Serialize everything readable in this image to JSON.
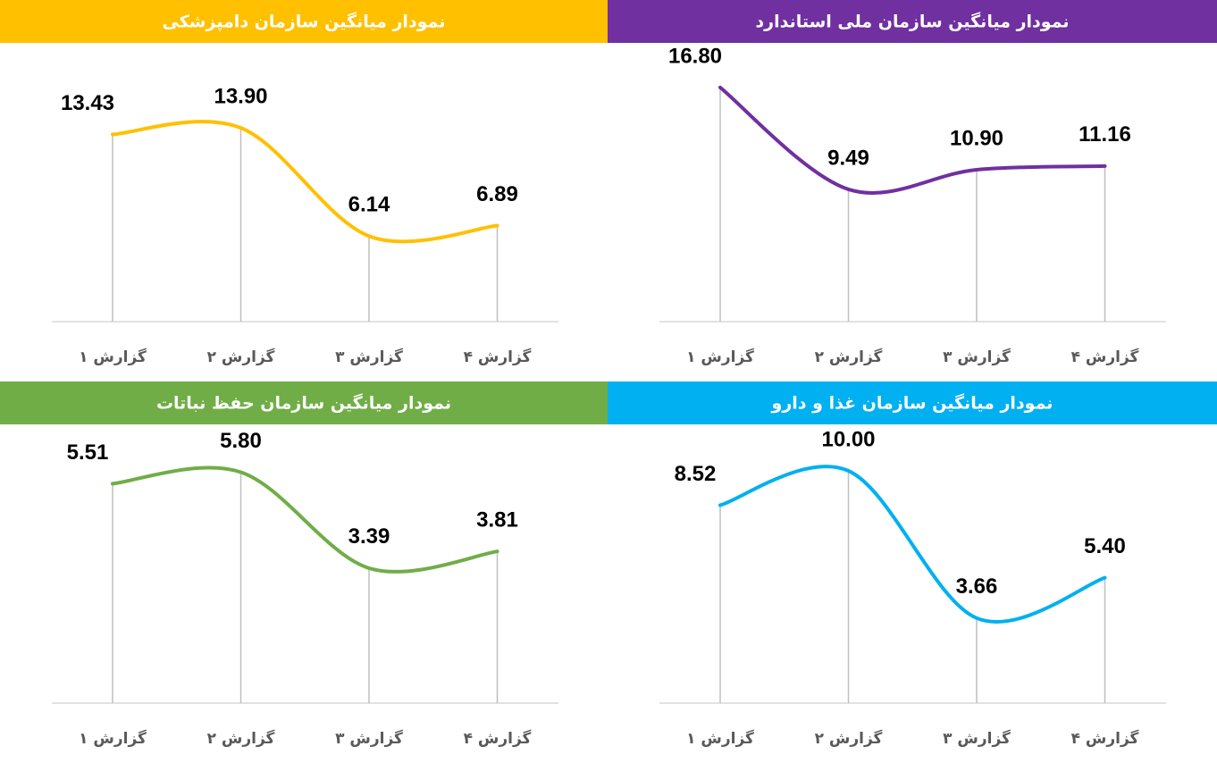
{
  "chart_data": [
    {
      "type": "line",
      "title": "نمودار میانگین سازمان دامپزشکی",
      "categories": [
        "گزارش ۱",
        "گزارش ۲",
        "گزارش ۳",
        "گزارش ۴"
      ],
      "series": [
        {
          "color": "#FFC000",
          "values": [
            13.43,
            13.9,
            6.14,
            6.89
          ],
          "value_labels": [
            "13.43",
            "13.90",
            "6.14",
            "6.89"
          ]
        }
      ],
      "ylim": [
        0,
        20
      ]
    },
    {
      "type": "line",
      "title": "نمودار میانگین سازمان ملی استاندارد",
      "categories": [
        "گزارش ۱",
        "گزارش ۲",
        "گزارش ۳",
        "گزارش ۴"
      ],
      "series": [
        {
          "color": "#7030A0",
          "values": [
            16.8,
            9.49,
            10.9,
            11.16
          ],
          "value_labels": [
            "16.80",
            "9.49",
            "10.90",
            "11.16"
          ]
        }
      ],
      "ylim": [
        0,
        20
      ]
    },
    {
      "type": "line",
      "title": "نمودار میانگین سازمان حفظ نباتات",
      "categories": [
        "گزارش ۱",
        "گزارش ۲",
        "گزارش ۳",
        "گزارش ۴"
      ],
      "series": [
        {
          "color": "#70AD47",
          "values": [
            5.51,
            5.8,
            3.39,
            3.81
          ],
          "value_labels": [
            "5.51",
            "5.80",
            "3.39",
            "3.81"
          ]
        }
      ],
      "ylim": [
        0,
        7
      ]
    },
    {
      "type": "line",
      "title": "نمودار میانگین سازمان غذا و دارو",
      "categories": [
        "گزارش ۱",
        "گزارش ۲",
        "گزارش ۳",
        "گزارش ۴"
      ],
      "series": [
        {
          "color": "#00B0F0",
          "values": [
            8.52,
            10.0,
            3.66,
            5.4
          ],
          "value_labels": [
            "8.52",
            "10.00",
            "3.66",
            "5.40"
          ]
        }
      ],
      "ylim": [
        0,
        12
      ]
    }
  ]
}
